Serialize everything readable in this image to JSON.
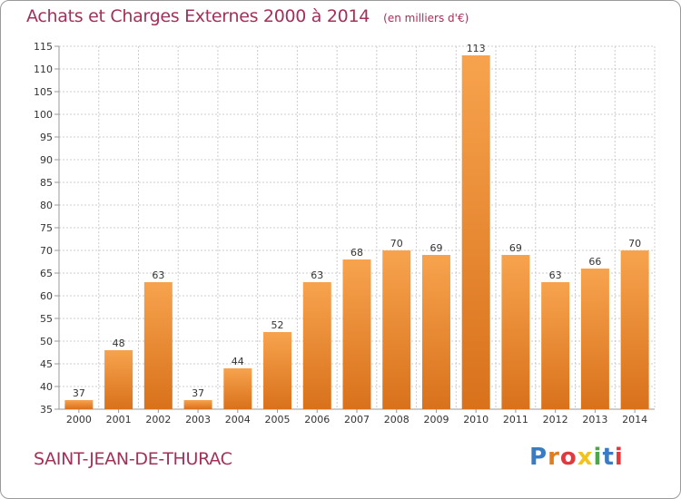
{
  "header": {
    "title": "Achats et Charges Externes 2000 à 2014",
    "unit": "(en milliers d'€)"
  },
  "footer": {
    "commune": "SAINT-JEAN-DE-THURAC",
    "logo": "Proxiti"
  },
  "colors": {
    "title": "#a3305a",
    "bar_top": "#f7a34e",
    "bar_bottom": "#d9711b",
    "grid": "#cccccc"
  },
  "chart_data": {
    "type": "bar",
    "title": "Achats et Charges Externes 2000 à 2014",
    "subtitle": "(en milliers d'€)",
    "xlabel": "",
    "ylabel": "",
    "categories": [
      "2000",
      "2001",
      "2002",
      "2003",
      "2004",
      "2005",
      "2006",
      "2007",
      "2008",
      "2009",
      "2010",
      "2011",
      "2012",
      "2013",
      "2014"
    ],
    "values": [
      37,
      48,
      63,
      37,
      44,
      52,
      63,
      68,
      70,
      69,
      113,
      69,
      63,
      66,
      70
    ],
    "ylim": [
      35,
      115
    ],
    "yticks": [
      35,
      40,
      45,
      50,
      55,
      60,
      65,
      70,
      75,
      80,
      85,
      90,
      95,
      100,
      105,
      110,
      115
    ],
    "grid": true,
    "data_labels": true
  }
}
